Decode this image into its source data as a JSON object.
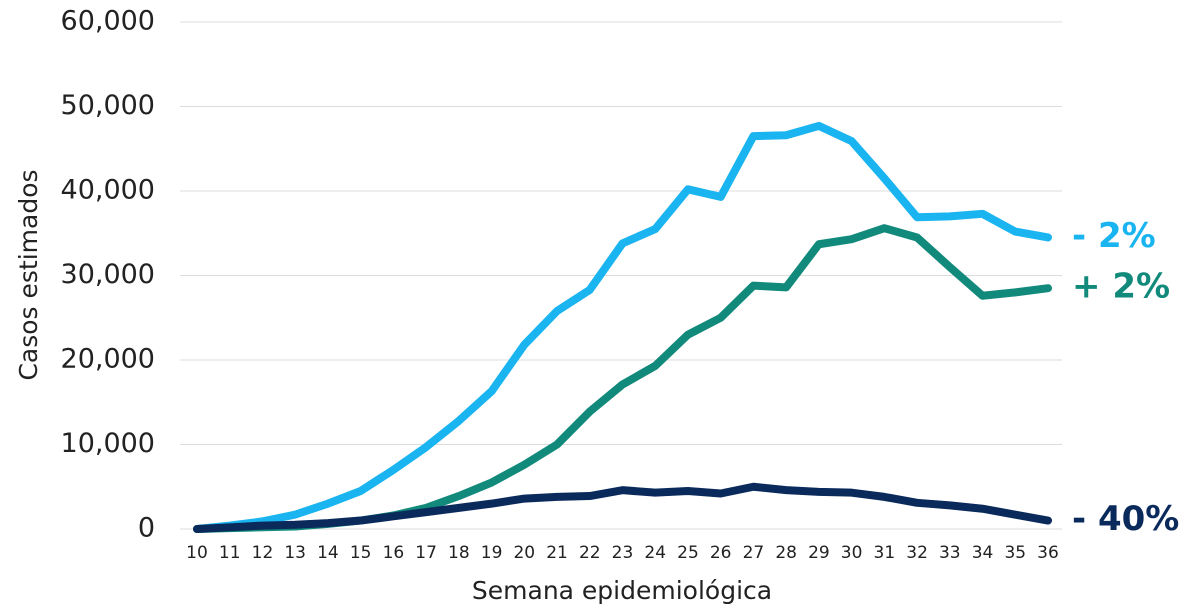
{
  "chart_data": {
    "type": "line",
    "x_label": "Semana epidemiológica",
    "y_label": "Casos estimados",
    "x": [
      10,
      11,
      12,
      13,
      14,
      15,
      16,
      17,
      18,
      19,
      20,
      21,
      22,
      23,
      24,
      25,
      26,
      27,
      28,
      29,
      30,
      31,
      32,
      33,
      34,
      35,
      36
    ],
    "xlim": [
      10,
      36
    ],
    "ylim": [
      0,
      60000
    ],
    "yticks": [
      0,
      {
        "value": 10000,
        "label": "10,000"
      },
      {
        "value": 20000,
        "label": "20,000"
      },
      {
        "value": 30000,
        "label": "30,000"
      },
      {
        "value": 40000,
        "label": "40,000"
      },
      {
        "value": 50000,
        "label": "50,000"
      },
      {
        "value": 60000,
        "label": "60,000"
      }
    ],
    "grid": true,
    "series": [
      {
        "name": "- 2%",
        "color": "#1ab4f0",
        "values": [
          0,
          400,
          900,
          1700,
          3000,
          4500,
          7000,
          9700,
          12800,
          16300,
          21800,
          25800,
          28300,
          33800,
          35500,
          40200,
          39300,
          46500,
          46600,
          47700,
          45900,
          41500,
          36900,
          37000,
          37300,
          35200,
          34500
        ]
      },
      {
        "name": "+ 2%",
        "color": "#11897b",
        "values": [
          0,
          100,
          200,
          300,
          600,
          1000,
          1600,
          2500,
          3900,
          5500,
          7600,
          10000,
          13900,
          17100,
          19300,
          23000,
          25000,
          28800,
          28600,
          33700,
          34300,
          35600,
          34500,
          31000,
          27600,
          28000,
          28500
        ]
      },
      {
        "name": "- 40%",
        "color": "#0b2a5c",
        "values": [
          0,
          200,
          400,
          500,
          700,
          1000,
          1500,
          2000,
          2500,
          3000,
          3600,
          3800,
          3900,
          4600,
          4300,
          4500,
          4200,
          5000,
          4600,
          4400,
          4300,
          3800,
          3100,
          2800,
          2400,
          1700,
          1000
        ]
      }
    ]
  }
}
